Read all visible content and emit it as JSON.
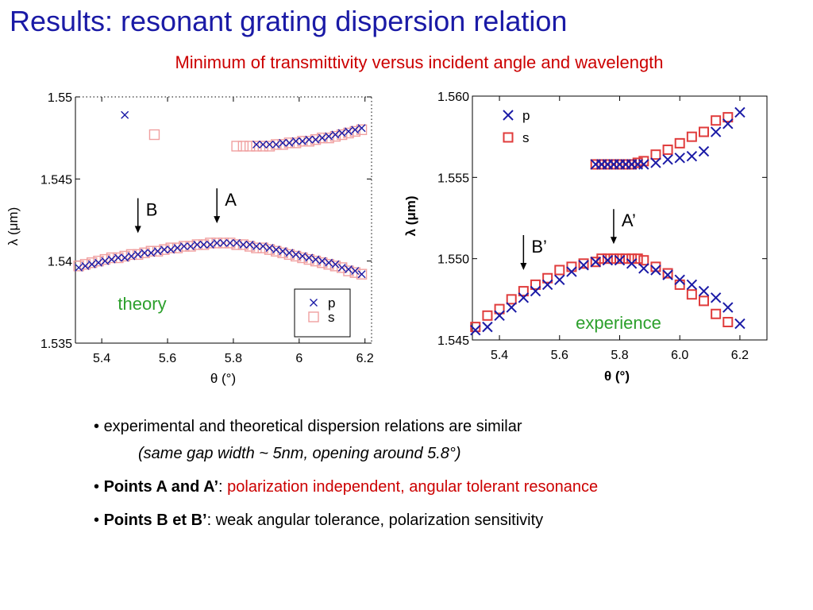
{
  "slide": {
    "title": "Results: resonant grating dispersion relation",
    "subtitle": "Minimum of transmittivity versus incident angle and wavelength"
  },
  "colors": {
    "title": "#1a1aa6",
    "subtitle": "#cc0000",
    "series_p": "#1a1aa6",
    "series_s": "#e03c3c",
    "label_theory": "#2ca02c",
    "label_experience": "#2ca02c"
  },
  "chart_data": [
    {
      "type": "scatter",
      "label": "theory",
      "xlabel": "θ (°)",
      "ylabel": "λ (μm)",
      "xlim": [
        5.32,
        6.22
      ],
      "ylim": [
        1.535,
        1.55
      ],
      "xticks": [
        5.4,
        5.6,
        5.8,
        6,
        6.2
      ],
      "xtick_labels": [
        "5.4",
        "5.6",
        "5.8",
        "6",
        "6.2"
      ],
      "yticks": [
        1.535,
        1.54,
        1.545,
        1.55
      ],
      "ytick_labels": [
        "1.535",
        "1.54",
        "1.545",
        "1.55"
      ],
      "legend": {
        "placement": "bottom-right",
        "entries": [
          "p",
          "s"
        ]
      },
      "annotations": [
        {
          "text": "B",
          "x": 5.51,
          "y": 1.5417
        },
        {
          "text": "A",
          "x": 5.75,
          "y": 1.5423
        }
      ],
      "series": [
        {
          "name": "p",
          "marker": "x",
          "color": "#1a1aa6",
          "points": [
            [
              5.33,
              1.5396
            ],
            [
              5.35,
              1.5397
            ],
            [
              5.37,
              1.5398
            ],
            [
              5.39,
              1.5399
            ],
            [
              5.41,
              1.54
            ],
            [
              5.43,
              1.5401
            ],
            [
              5.45,
              1.5402
            ],
            [
              5.47,
              1.5402
            ],
            [
              5.49,
              1.5403
            ],
            [
              5.51,
              1.5404
            ],
            [
              5.53,
              1.5405
            ],
            [
              5.55,
              1.5405
            ],
            [
              5.57,
              1.5406
            ],
            [
              5.59,
              1.5407
            ],
            [
              5.61,
              1.5407
            ],
            [
              5.63,
              1.5408
            ],
            [
              5.65,
              1.5409
            ],
            [
              5.67,
              1.5409
            ],
            [
              5.69,
              1.541
            ],
            [
              5.71,
              1.541
            ],
            [
              5.73,
              1.541
            ],
            [
              5.75,
              1.5411
            ],
            [
              5.77,
              1.5411
            ],
            [
              5.79,
              1.5411
            ],
            [
              5.81,
              1.5411
            ],
            [
              5.83,
              1.541
            ],
            [
              5.85,
              1.541
            ],
            [
              5.87,
              1.5409
            ],
            [
              5.89,
              1.5409
            ],
            [
              5.91,
              1.5408
            ],
            [
              5.93,
              1.5407
            ],
            [
              5.95,
              1.5406
            ],
            [
              5.97,
              1.5405
            ],
            [
              5.99,
              1.5404
            ],
            [
              6.01,
              1.5403
            ],
            [
              6.03,
              1.5402
            ],
            [
              6.05,
              1.5401
            ],
            [
              6.07,
              1.54
            ],
            [
              6.09,
              1.5399
            ],
            [
              6.11,
              1.5398
            ],
            [
              6.13,
              1.5396
            ],
            [
              6.15,
              1.5395
            ],
            [
              6.17,
              1.5394
            ],
            [
              6.19,
              1.5392
            ],
            [
              5.47,
              1.5489
            ],
            [
              5.87,
              1.5471
            ],
            [
              5.89,
              1.5471
            ],
            [
              5.91,
              1.5471
            ],
            [
              5.93,
              1.5471
            ],
            [
              5.95,
              1.5472
            ],
            [
              5.97,
              1.5472
            ],
            [
              5.99,
              1.5473
            ],
            [
              6.01,
              1.5473
            ],
            [
              6.03,
              1.5474
            ],
            [
              6.05,
              1.5474
            ],
            [
              6.07,
              1.5475
            ],
            [
              6.09,
              1.5476
            ],
            [
              6.11,
              1.5477
            ],
            [
              6.13,
              1.5478
            ],
            [
              6.15,
              1.5479
            ],
            [
              6.17,
              1.548
            ],
            [
              6.19,
              1.5481
            ]
          ]
        },
        {
          "name": "s",
          "marker": "square-open",
          "color": "#f0a0a0",
          "points": [
            [
              5.33,
              1.5397
            ],
            [
              5.35,
              1.5398
            ],
            [
              5.37,
              1.5399
            ],
            [
              5.39,
              1.54
            ],
            [
              5.41,
              1.5401
            ],
            [
              5.43,
              1.5402
            ],
            [
              5.45,
              1.5402
            ],
            [
              5.47,
              1.5403
            ],
            [
              5.49,
              1.5404
            ],
            [
              5.51,
              1.5404
            ],
            [
              5.53,
              1.5405
            ],
            [
              5.55,
              1.5406
            ],
            [
              5.57,
              1.5406
            ],
            [
              5.59,
              1.5407
            ],
            [
              5.61,
              1.5408
            ],
            [
              5.63,
              1.5408
            ],
            [
              5.65,
              1.5409
            ],
            [
              5.67,
              1.5409
            ],
            [
              5.69,
              1.541
            ],
            [
              5.71,
              1.541
            ],
            [
              5.73,
              1.5411
            ],
            [
              5.75,
              1.5411
            ],
            [
              5.77,
              1.5411
            ],
            [
              5.79,
              1.5411
            ],
            [
              5.81,
              1.541
            ],
            [
              5.83,
              1.541
            ],
            [
              5.85,
              1.5409
            ],
            [
              5.87,
              1.5408
            ],
            [
              5.89,
              1.5408
            ],
            [
              5.91,
              1.5407
            ],
            [
              5.93,
              1.5406
            ],
            [
              5.95,
              1.5405
            ],
            [
              5.97,
              1.5404
            ],
            [
              5.99,
              1.5403
            ],
            [
              6.01,
              1.5402
            ],
            [
              6.03,
              1.5401
            ],
            [
              6.05,
              1.54
            ],
            [
              6.07,
              1.5399
            ],
            [
              6.09,
              1.5398
            ],
            [
              6.11,
              1.5397
            ],
            [
              6.13,
              1.5396
            ],
            [
              6.15,
              1.5394
            ],
            [
              6.17,
              1.5393
            ],
            [
              6.19,
              1.5392
            ],
            [
              5.56,
              1.5477
            ],
            [
              5.81,
              1.547
            ],
            [
              5.83,
              1.547
            ],
            [
              5.85,
              1.547
            ],
            [
              5.87,
              1.547
            ],
            [
              5.89,
              1.547
            ],
            [
              5.91,
              1.547
            ],
            [
              5.93,
              1.5471
            ],
            [
              5.95,
              1.5471
            ],
            [
              5.97,
              1.5472
            ],
            [
              5.99,
              1.5472
            ],
            [
              6.01,
              1.5473
            ],
            [
              6.03,
              1.5473
            ],
            [
              6.05,
              1.5474
            ],
            [
              6.07,
              1.5475
            ],
            [
              6.09,
              1.5475
            ],
            [
              6.11,
              1.5476
            ],
            [
              6.13,
              1.5477
            ],
            [
              6.15,
              1.5478
            ],
            [
              6.17,
              1.5479
            ],
            [
              6.19,
              1.548
            ]
          ]
        }
      ]
    },
    {
      "type": "scatter",
      "label": "experience",
      "xlabel": "θ (°)",
      "ylabel": "λ (μm)",
      "xlim": [
        5.31,
        6.29
      ],
      "ylim": [
        1.545,
        1.56
      ],
      "xticks": [
        5.4,
        5.6,
        5.8,
        6.0,
        6.2
      ],
      "xtick_labels": [
        "5.4",
        "5.6",
        "5.8",
        "6.0",
        "6.2"
      ],
      "yticks": [
        1.545,
        1.55,
        1.555,
        1.56
      ],
      "ytick_labels": [
        "1.545",
        "1.550",
        "1.555",
        "1.560"
      ],
      "legend": {
        "placement": "top-left",
        "entries": [
          "p",
          "s"
        ]
      },
      "annotations": [
        {
          "text": "B’",
          "x": 5.48,
          "y": 1.5493
        },
        {
          "text": "A’",
          "x": 5.78,
          "y": 1.5509
        }
      ],
      "series": [
        {
          "name": "p",
          "marker": "x",
          "color": "#1a1aa6",
          "points": [
            [
              5.32,
              1.5456
            ],
            [
              5.36,
              1.5458
            ],
            [
              5.4,
              1.5465
            ],
            [
              5.44,
              1.547
            ],
            [
              5.48,
              1.5476
            ],
            [
              5.52,
              1.548
            ],
            [
              5.56,
              1.5484
            ],
            [
              5.6,
              1.5487
            ],
            [
              5.64,
              1.5492
            ],
            [
              5.68,
              1.5496
            ],
            [
              5.72,
              1.5498
            ],
            [
              5.76,
              1.5499
            ],
            [
              5.8,
              1.5499
            ],
            [
              5.84,
              1.5497
            ],
            [
              5.88,
              1.5494
            ],
            [
              5.92,
              1.5493
            ],
            [
              5.96,
              1.549
            ],
            [
              6.0,
              1.5487
            ],
            [
              6.04,
              1.5484
            ],
            [
              6.08,
              1.548
            ],
            [
              6.12,
              1.5476
            ],
            [
              6.16,
              1.547
            ],
            [
              6.2,
              1.546
            ],
            [
              5.72,
              1.5558
            ],
            [
              5.74,
              1.5558
            ],
            [
              5.76,
              1.5558
            ],
            [
              5.78,
              1.5558
            ],
            [
              5.8,
              1.5558
            ],
            [
              5.82,
              1.5558
            ],
            [
              5.84,
              1.5558
            ],
            [
              5.86,
              1.5558
            ],
            [
              5.88,
              1.5558
            ],
            [
              5.92,
              1.5559
            ],
            [
              5.96,
              1.5561
            ],
            [
              6.0,
              1.5562
            ],
            [
              6.04,
              1.5563
            ],
            [
              6.08,
              1.5566
            ],
            [
              6.12,
              1.5578
            ],
            [
              6.16,
              1.5583
            ],
            [
              6.2,
              1.559
            ]
          ]
        },
        {
          "name": "s",
          "marker": "square-open",
          "color": "#e03c3c",
          "points": [
            [
              5.32,
              1.5458
            ],
            [
              5.36,
              1.5465
            ],
            [
              5.4,
              1.5469
            ],
            [
              5.44,
              1.5475
            ],
            [
              5.48,
              1.548
            ],
            [
              5.52,
              1.5484
            ],
            [
              5.56,
              1.5488
            ],
            [
              5.6,
              1.5493
            ],
            [
              5.64,
              1.5495
            ],
            [
              5.68,
              1.5497
            ],
            [
              5.72,
              1.5498
            ],
            [
              5.74,
              1.55
            ],
            [
              5.76,
              1.55
            ],
            [
              5.78,
              1.55
            ],
            [
              5.8,
              1.55
            ],
            [
              5.82,
              1.55
            ],
            [
              5.84,
              1.55
            ],
            [
              5.86,
              1.55
            ],
            [
              5.88,
              1.5499
            ],
            [
              5.92,
              1.5495
            ],
            [
              5.96,
              1.5491
            ],
            [
              6.0,
              1.5484
            ],
            [
              6.04,
              1.5478
            ],
            [
              6.08,
              1.5474
            ],
            [
              6.12,
              1.5466
            ],
            [
              6.16,
              1.5461
            ],
            [
              5.72,
              1.5558
            ],
            [
              5.74,
              1.5558
            ],
            [
              5.76,
              1.5558
            ],
            [
              5.78,
              1.5558
            ],
            [
              5.8,
              1.5558
            ],
            [
              5.82,
              1.5558
            ],
            [
              5.84,
              1.5558
            ],
            [
              5.86,
              1.5559
            ],
            [
              5.88,
              1.556
            ],
            [
              5.92,
              1.5564
            ],
            [
              5.96,
              1.5567
            ],
            [
              6.0,
              1.5571
            ],
            [
              6.04,
              1.5575
            ],
            [
              6.08,
              1.5578
            ],
            [
              6.12,
              1.5585
            ],
            [
              6.16,
              1.5587
            ]
          ]
        }
      ]
    }
  ],
  "bullets": [
    {
      "text": "experimental and theoretical dispersion relations are similar",
      "sub": "(same gap width ~ 5nm, opening around 5.8°)"
    },
    {
      "bold": "Points A and A’",
      "sep": ": ",
      "rest": "polarization independent, angular tolerant resonance"
    },
    {
      "bold": "Points B et B’",
      "sep": ": ",
      "rest": "weak angular tolerance, polarization sensitivity"
    }
  ]
}
